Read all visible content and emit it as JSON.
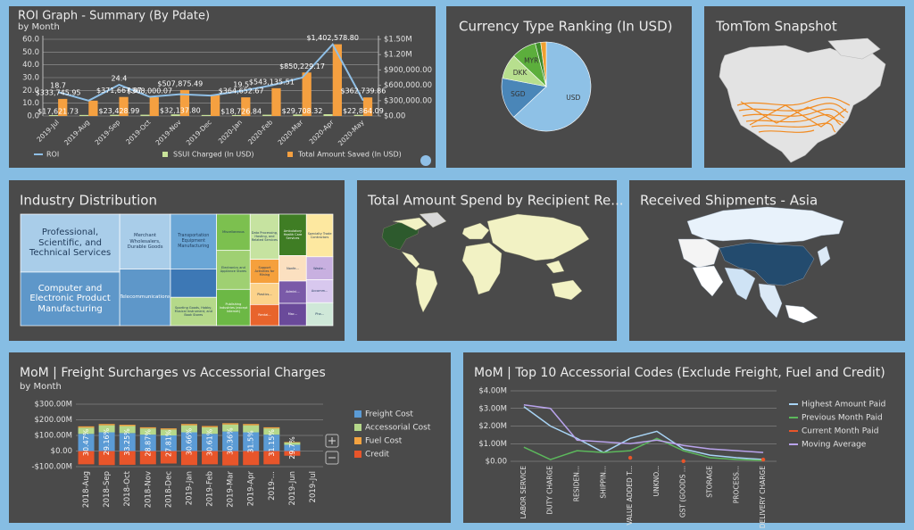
{
  "chart_data": [
    {
      "type": "combo",
      "title": "ROI Graph - Summary (By Pdate)",
      "subtitle": "by Month",
      "categories": [
        "2019-Jul",
        "2019-Aug",
        "2019-Sep",
        "2019-Oct",
        "2019-Nov",
        "2019-Dec",
        "2020-Jan",
        "2020-Feb",
        "2020-Mar",
        "2020-Apr",
        "2020-May"
      ],
      "ylim": [
        0,
        60
      ],
      "yticks": [
        {
          "value": 0,
          "label": "0.0"
        },
        {
          "value": 10,
          "label": "10.0"
        },
        {
          "value": 20,
          "label": "20.0"
        },
        {
          "value": 30,
          "label": "30.0"
        },
        {
          "value": 40,
          "label": "40.0"
        },
        {
          "value": 50,
          "label": "50.0"
        },
        {
          "value": 60,
          "label": "60.0"
        }
      ],
      "y2lim": [
        0,
        1500000
      ],
      "y2ticks": [
        {
          "value": 0,
          "label": "$0.00"
        },
        {
          "value": 300000,
          "label": "$300,000.00"
        },
        {
          "value": 600000,
          "label": "$600,000.00"
        },
        {
          "value": 900000,
          "label": "$900,000.00"
        },
        {
          "value": 1200000,
          "label": "$1.20M"
        },
        {
          "value": 1500000,
          "label": "$1.50M"
        }
      ],
      "grid": true,
      "series": [
        {
          "name": "ROI",
          "type": "line",
          "color": "#8fbfe6",
          "values": [
            18.7,
            12,
            24.4,
            15,
            17,
            16,
            19.5,
            24,
            30,
            56,
            12
          ],
          "value_labels": [
            "18.7",
            null,
            "24.4",
            null,
            null,
            null,
            "19.5",
            null,
            null,
            null,
            null
          ]
        },
        {
          "name": "SSUI Charged (In USD)",
          "type": "bar",
          "axis": "y2",
          "color": "#c9e39a",
          "values": [
            17621.73,
            20000,
            23428.99,
            25000,
            32137.8,
            20000,
            18726.84,
            25000,
            29708.32,
            35000,
            22864.09
          ],
          "value_labels": [
            "$17,621.73",
            null,
            "$23,428.99",
            null,
            "$32,137.80",
            null,
            "$18,726.84",
            null,
            "$29,708.32",
            null,
            "$22,864.09"
          ]
        },
        {
          "name": "Total Amount Saved (In USD)",
          "type": "bar",
          "axis": "y2",
          "color": "#f5a040",
          "values": [
            333745.95,
            300000,
            371667.87,
            368000.07,
            507875.49,
            420000,
            364652.67,
            543135.51,
            850229.17,
            1402578.8,
            362739.86
          ],
          "value_labels": [
            "$333,745.95",
            null,
            "$371,667.87",
            "$368,000.07",
            "$507,875.49",
            null,
            "$364,652.67",
            "$543,135.51",
            "$850,229.17",
            "$1,402,578.80",
            "$362,739.86"
          ]
        }
      ]
    },
    {
      "type": "pie",
      "title": "Currency Type Ranking (In USD)",
      "categories": [
        "USD",
        "SGD",
        "DKK",
        "MYR",
        null,
        null
      ],
      "values": [
        63,
        15,
        9,
        9,
        2,
        2
      ],
      "colors": [
        "#8ec1e6",
        "#4a86b8",
        "#b7df8e",
        "#5cae3c",
        "#3d8b2a",
        "#f0a030"
      ]
    },
    {
      "type": "treemap",
      "title": "Industry Distribution",
      "categories": [
        "Professional, Scientific, and Technical Services",
        "Computer and Electronic Product Manufacturing",
        "Merchant Wholesalers, Durable Goods",
        "Telecommunications",
        "Transportation Equipment Manufacturing",
        null,
        "Sporting Goods, Hobby, Musical Instrument, and Book Stores",
        "Miscellaneous",
        "Electronics and Appliance Stores",
        "Publishing Industries (except Internet)",
        "Data Processing, Hosting, and Related Services",
        "Support Activities for Mining",
        "Plastics...",
        "Rental...",
        "Ambulatory Health Care Services",
        "Nonfe...",
        "Admini...",
        "Mac...",
        "Specialty Trade Contractors",
        "Waste...",
        "Accomm...",
        "Pha..."
      ],
      "values": [
        66,
        61,
        32,
        33,
        29,
        15,
        15,
        14,
        15,
        14,
        15,
        8,
        7,
        7,
        13,
        8,
        7,
        7,
        13,
        7,
        7,
        7
      ],
      "colors": [
        "#a9cde9",
        "#5e97c9",
        "#a9cde9",
        "#5e97c9",
        "#6aa6d6",
        "#3d78b5",
        "#b5d98a",
        "#7cc04f",
        "#9fd072",
        "#6cb845",
        "#c6e3a0",
        "#f5a03c",
        "#fbd28a",
        "#e8642c",
        "#3f7d24",
        "#fbe0c0",
        "#7a5aa8",
        "#6a4a9a",
        "#fde8a0",
        "#c8b0e0",
        "#d8c8ee",
        "#cfe8d8"
      ]
    },
    {
      "type": "stacked_bar",
      "title": "MoM | Freight Surcharges vs Accessorial Charges",
      "subtitle": "by Month",
      "categories": [
        "2018-Aug",
        "2018-Sep",
        "2018-Oct",
        "2018-Nov",
        "2018-Dec",
        "2019-Jan",
        "2019-Feb",
        "2019-Mar",
        "2019-Apr",
        "2019-...",
        "2019-Jun",
        "2019-Jul"
      ],
      "ylim": [
        -100000000,
        300000000
      ],
      "yticks": [
        {
          "value": -100000000,
          "label": "-$100.00M"
        },
        {
          "value": 0,
          "label": "$0.00"
        },
        {
          "value": 100000000,
          "label": "$100.00M"
        },
        {
          "value": 200000000,
          "label": "$200.00M"
        },
        {
          "value": 300000000,
          "label": "$300.00M"
        }
      ],
      "grid": true,
      "series": [
        {
          "name": "Freight Cost",
          "color": "#5b9bd5",
          "values": [
            110000000,
            120000000,
            115000000,
            105000000,
            100000000,
            120000000,
            110000000,
            125000000,
            120000000,
            105000000,
            40000000,
            null
          ]
        },
        {
          "name": "Accessorial Cost",
          "color": "#b5d88a",
          "values": [
            40000000,
            45000000,
            45000000,
            40000000,
            38000000,
            45000000,
            42000000,
            45000000,
            45000000,
            40000000,
            15000000,
            null
          ]
        },
        {
          "name": "Fuel Cost",
          "color": "#f4a340",
          "values": [
            8000000,
            8000000,
            8000000,
            7000000,
            7000000,
            8000000,
            8000000,
            8000000,
            8000000,
            7000000,
            3000000,
            null
          ]
        },
        {
          "name": "Credit",
          "color": "#e8552a",
          "values": [
            -85000000,
            -90000000,
            -88000000,
            -85000000,
            -80000000,
            -90000000,
            -85000000,
            -92000000,
            -90000000,
            -85000000,
            -30000000,
            null
          ]
        }
      ],
      "annotations": [
        "30.47%",
        "29.16%",
        "33.25%",
        "28.87%",
        "27.81%",
        "30.66%",
        "30.61%",
        "30.36%",
        "31.5%",
        "31.15%",
        "29.7%",
        null
      ]
    },
    {
      "type": "line",
      "title": "MoM | Top 10 Accessorial Codes (Exclude Freight, Fuel and Credit)",
      "categories": [
        "LABOR SERVICE",
        "DUTY CHARGE",
        "RESIDEN...",
        "SHIPPIN...",
        "VALUE ADDED T...",
        "UNKNO...",
        "GST (GOODS ...",
        "STORAGE",
        "PROCESS...",
        "DELIVERY CHARGE"
      ],
      "ylim": [
        0,
        4000000
      ],
      "yticks": [
        {
          "value": 0,
          "label": "$0.00"
        },
        {
          "value": 1000000,
          "label": "$1.00M"
        },
        {
          "value": 2000000,
          "label": "$2.00M"
        },
        {
          "value": 3000000,
          "label": "$3.00M"
        },
        {
          "value": 4000000,
          "label": "$4.00M"
        }
      ],
      "grid": true,
      "series": [
        {
          "name": "Highest Amount Paid",
          "color": "#a8d4f5",
          "values": [
            3100000,
            2000000,
            1300000,
            500000,
            1300000,
            1700000,
            700000,
            350000,
            200000,
            100000
          ]
        },
        {
          "name": "Previous Month Paid",
          "color": "#5cb85c",
          "values": [
            800000,
            100000,
            600000,
            500000,
            600000,
            1300000,
            600000,
            200000,
            100000,
            50000
          ]
        },
        {
          "name": "Current Month Paid",
          "color": "#e8552a",
          "values": [
            null,
            null,
            null,
            null,
            200000,
            null,
            10000,
            null,
            null,
            100000
          ]
        },
        {
          "name": "Moving Average",
          "color": "#b9a3ec",
          "values": [
            3200000,
            3000000,
            1200000,
            1100000,
            1000000,
            1200000,
            900000,
            700000,
            600000,
            500000
          ]
        }
      ]
    }
  ],
  "maps": [
    {
      "title": "TomTom Snapshot"
    },
    {
      "title": "Total Amount Spend by Recipient Re..."
    },
    {
      "title": "Received Shipments - Asia"
    }
  ]
}
